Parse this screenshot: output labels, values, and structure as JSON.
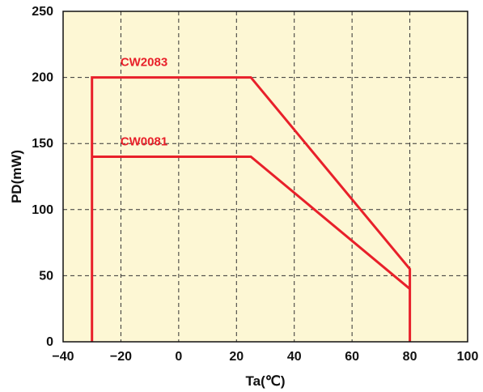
{
  "chart_data": {
    "type": "line",
    "xlabel": "Ta(℃)",
    "ylabel": "PD(mW)",
    "xlim": [
      -40,
      100
    ],
    "ylim": [
      0,
      250
    ],
    "x_ticks": [
      "−40",
      "−20",
      "0",
      "20",
      "40",
      "60",
      "80",
      "100"
    ],
    "y_ticks": [
      "0",
      "50",
      "100",
      "150",
      "200",
      "250"
    ],
    "x_tick_values": [
      -40,
      -20,
      0,
      20,
      40,
      60,
      80,
      100
    ],
    "y_tick_values": [
      0,
      50,
      100,
      150,
      200,
      250
    ],
    "grid": true,
    "background_color": "#fdf7d4",
    "line_color": "#e8202a",
    "series": [
      {
        "name": "CW2083",
        "points": [
          [
            -30,
            0
          ],
          [
            -30,
            200
          ],
          [
            25,
            200
          ],
          [
            80,
            55
          ],
          [
            80,
            0
          ]
        ]
      },
      {
        "name": "CW0081",
        "points": [
          [
            -30,
            140
          ],
          [
            25,
            140
          ],
          [
            80,
            40
          ]
        ]
      }
    ]
  }
}
